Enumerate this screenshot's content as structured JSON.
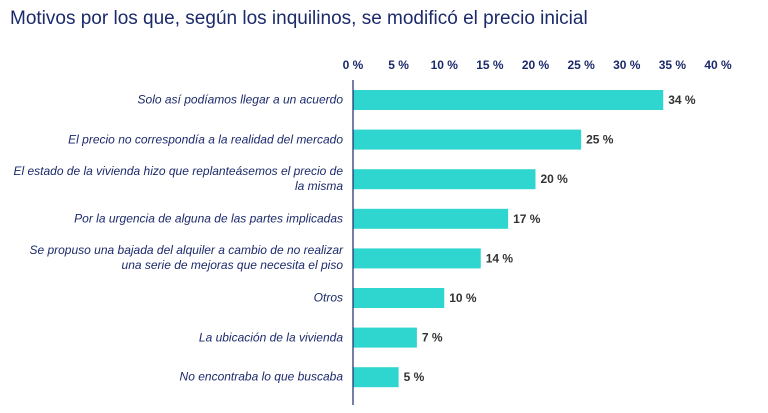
{
  "title": "Motivos por los que, según los inquilinos, se modificó el precio inicial",
  "colors": {
    "bar": "#2ed6cf",
    "text": "#1c2a6b",
    "axis": "#1c2a6b"
  },
  "chart_data": {
    "type": "bar",
    "orientation": "horizontal",
    "title": "Motivos por los que, según los inquilinos, se modificó el precio inicial",
    "xlim": [
      0,
      40
    ],
    "ticks": [
      0,
      5,
      10,
      15,
      20,
      25,
      30,
      35,
      40
    ],
    "tick_labels": [
      "0 %",
      "5 %",
      "10 %",
      "15 %",
      "20 %",
      "25 %",
      "30 %",
      "35 %",
      "40 %"
    ],
    "tick_position": "top",
    "grid": false,
    "categories": [
      "Solo así podíamos llegar a un acuerdo",
      "El precio no correspondía a la realidad del mercado",
      "El estado de la vivienda hizo que replanteásemos el precio de la misma",
      "Por la urgencia de alguna de las partes implicadas",
      "Se propuso una bajada del alquiler a cambio de no realizar una serie de mejoras que necesita el piso",
      "Otros",
      "La ubicación de la vivienda",
      "No encontraba lo que buscaba"
    ],
    "values": [
      34,
      25,
      20,
      17,
      14,
      10,
      7,
      5
    ],
    "value_labels": [
      "34 %",
      "25 %",
      "20 %",
      "17 %",
      "14 %",
      "10 %",
      "7 %",
      "5 %"
    ]
  }
}
